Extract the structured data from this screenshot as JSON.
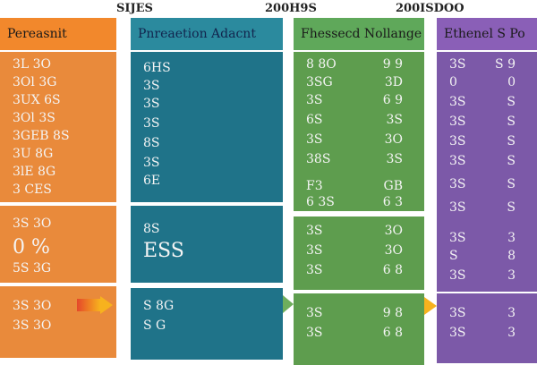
{
  "top_labels": [
    "SIJES",
    "200H9S",
    "200ISDOO"
  ],
  "columns": [
    {
      "header": "Pereasnit",
      "accent": "#e98a3b",
      "blocks": [
        {
          "rows": [
            [
              "3L 3O",
              ""
            ],
            [
              "3Ol 3G",
              ""
            ],
            [
              "3UX 6S",
              ""
            ],
            [
              "3Ol 3S",
              ""
            ],
            [
              "3GEB 8S",
              ""
            ],
            [
              "3U 8G",
              ""
            ],
            [
              "3lE 8G",
              ""
            ],
            [
              "3 CES",
              ""
            ]
          ]
        },
        {
          "rows": [
            [
              "3S 3O",
              ""
            ],
            [
              "0 %",
              ""
            ],
            [
              "5S 3G",
              ""
            ]
          ]
        },
        {
          "rows": [
            [
              "3S 3O",
              ""
            ],
            [
              "3S 3O",
              ""
            ]
          ]
        }
      ]
    },
    {
      "header": "Pnreaetion Adacnt",
      "accent": "#1f7389",
      "blocks": [
        {
          "rows": [
            [
              "6HS",
              ""
            ],
            [
              "3S",
              ""
            ],
            [
              "3S",
              ""
            ],
            [
              "3S",
              ""
            ],
            [
              "8S",
              ""
            ],
            [
              "3S",
              ""
            ],
            [
              "6E",
              ""
            ]
          ]
        },
        {
          "rows": [
            [
              "8S",
              ""
            ],
            [
              "ESS",
              ""
            ]
          ]
        },
        {
          "rows": [
            [
              "S 8G",
              ""
            ],
            [
              "S G",
              ""
            ]
          ]
        }
      ]
    },
    {
      "header": "Fhessecd Nollange",
      "accent": "#5e9d4e",
      "blocks": [
        {
          "rows": [
            [
              "8 8O",
              "9 9"
            ],
            [
              "3SG",
              "3D"
            ],
            [
              "3S",
              "6 9"
            ],
            [
              "6S",
              "3S"
            ],
            [
              "3S",
              "3O"
            ],
            [
              "38S",
              "3S"
            ],
            [
              "F3",
              "GB"
            ],
            [
              "6 3S",
              "6 3"
            ]
          ]
        },
        {
          "rows": [
            [
              "3S",
              "3O"
            ],
            [
              "3S",
              "3O"
            ],
            [
              "3S",
              "6 8"
            ]
          ]
        },
        {
          "rows": [
            [
              "3S",
              "9 8"
            ],
            [
              "3S",
              "6 8"
            ]
          ]
        }
      ]
    },
    {
      "header": "Ethenel S Po",
      "accent": "#7c59a8",
      "blocks": [
        {
          "rows": [
            [
              "3S",
              "S 9"
            ],
            [
              "0",
              "0"
            ],
            [
              "3S",
              "S"
            ],
            [
              "3S",
              "S"
            ],
            [
              "3S",
              "S"
            ],
            [
              "3S",
              "S"
            ],
            [
              "3S",
              "S"
            ],
            [
              "3S",
              "S"
            ]
          ]
        },
        {
          "rows": [
            [
              "3S",
              "3"
            ],
            [
              "S",
              "8"
            ],
            [
              "3S",
              "3"
            ]
          ]
        },
        {
          "rows": [
            [
              "3S",
              "3"
            ],
            [
              "3S",
              "3"
            ]
          ]
        }
      ]
    }
  ]
}
